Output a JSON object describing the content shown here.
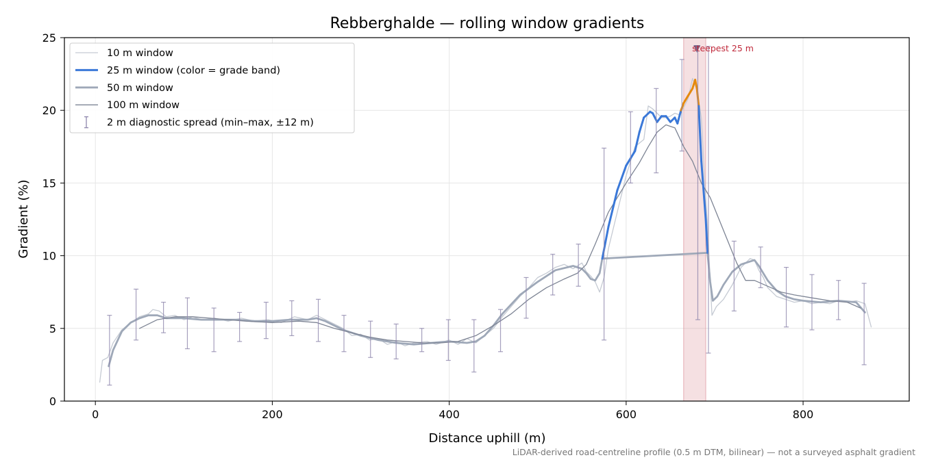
{
  "chart_data": {
    "type": "line",
    "title": "Rebberghalde — rolling window gradients",
    "xlabel": "Distance uphill (m)",
    "ylabel": "Gradient (%)",
    "xlim": [
      -35,
      920
    ],
    "ylim": [
      0,
      25
    ],
    "x_ticks": [
      0,
      200,
      400,
      600,
      800
    ],
    "y_ticks": [
      0,
      5,
      10,
      15,
      20,
      25
    ],
    "grid": true,
    "legend_position": "top-left",
    "footnote": "LiDAR-derived road-centreline profile (0.5 m DTM, bilinear) — not a surveyed asphalt gradient",
    "highlight": {
      "x_range": [
        665,
        690
      ],
      "label": "steepest 25 m",
      "marker": [
        680,
        24.2
      ],
      "color": "#d9828c"
    },
    "series": [
      {
        "name": "10 m window",
        "color": "#c5cad3",
        "points": [
          [
            5,
            1.3
          ],
          [
            8,
            2.8
          ],
          [
            14,
            3.0
          ],
          [
            20,
            4.0
          ],
          [
            30,
            4.9
          ],
          [
            40,
            5.4
          ],
          [
            50,
            5.8
          ],
          [
            60,
            6.0
          ],
          [
            65,
            6.3
          ],
          [
            72,
            6.2
          ],
          [
            80,
            5.8
          ],
          [
            90,
            5.9
          ],
          [
            100,
            5.6
          ],
          [
            110,
            5.8
          ],
          [
            120,
            5.6
          ],
          [
            135,
            5.7
          ],
          [
            150,
            5.5
          ],
          [
            165,
            5.7
          ],
          [
            180,
            5.5
          ],
          [
            195,
            5.6
          ],
          [
            210,
            5.4
          ],
          [
            225,
            5.8
          ],
          [
            240,
            5.6
          ],
          [
            250,
            5.9
          ],
          [
            260,
            5.6
          ],
          [
            270,
            5.3
          ],
          [
            280,
            5.0
          ],
          [
            290,
            4.5
          ],
          [
            300,
            4.6
          ],
          [
            310,
            4.2
          ],
          [
            320,
            4.3
          ],
          [
            330,
            3.9
          ],
          [
            340,
            4.1
          ],
          [
            350,
            3.8
          ],
          [
            360,
            4.0
          ],
          [
            375,
            4.1
          ],
          [
            385,
            3.9
          ],
          [
            400,
            4.2
          ],
          [
            410,
            3.9
          ],
          [
            420,
            4.3
          ],
          [
            430,
            4.0
          ],
          [
            440,
            4.5
          ],
          [
            450,
            5.0
          ],
          [
            460,
            5.8
          ],
          [
            470,
            6.5
          ],
          [
            480,
            7.2
          ],
          [
            490,
            7.8
          ],
          [
            500,
            8.5
          ],
          [
            510,
            8.8
          ],
          [
            520,
            9.2
          ],
          [
            530,
            9.4
          ],
          [
            540,
            9.1
          ],
          [
            550,
            9.5
          ],
          [
            555,
            8.9
          ],
          [
            560,
            8.6
          ],
          [
            565,
            8.2
          ],
          [
            570,
            7.5
          ],
          [
            575,
            8.5
          ],
          [
            580,
            10.5
          ],
          [
            590,
            13.0
          ],
          [
            600,
            15.5
          ],
          [
            610,
            17.5
          ],
          [
            620,
            18.0
          ],
          [
            625,
            20.3
          ],
          [
            630,
            20.1
          ],
          [
            635,
            19.8
          ],
          [
            640,
            19.5
          ],
          [
            645,
            19.5
          ],
          [
            650,
            19.6
          ],
          [
            655,
            19.8
          ],
          [
            660,
            19.7
          ],
          [
            665,
            20.2
          ],
          [
            670,
            20.8
          ],
          [
            675,
            22.2
          ],
          [
            680,
            21.4
          ],
          [
            685,
            19.5
          ],
          [
            688,
            16.0
          ],
          [
            692,
            12.0
          ],
          [
            697,
            5.9
          ],
          [
            702,
            6.5
          ],
          [
            710,
            7.0
          ],
          [
            720,
            8.0
          ],
          [
            730,
            9.2
          ],
          [
            740,
            9.8
          ],
          [
            745,
            9.7
          ],
          [
            750,
            9.0
          ],
          [
            755,
            8.5
          ],
          [
            760,
            7.8
          ],
          [
            765,
            7.5
          ],
          [
            770,
            7.2
          ],
          [
            780,
            7.0
          ],
          [
            790,
            6.8
          ],
          [
            800,
            6.9
          ],
          [
            810,
            6.7
          ],
          [
            820,
            6.8
          ],
          [
            830,
            6.7
          ],
          [
            840,
            6.9
          ],
          [
            850,
            6.8
          ],
          [
            860,
            6.9
          ],
          [
            870,
            6.7
          ],
          [
            877,
            5.1
          ]
        ]
      },
      {
        "name": "25 m window (color = grade band)",
        "color": "#3a78d8",
        "band_colors": {
          "below_20": "#3a78d8",
          "20_to_25": "#e58a0e"
        },
        "points": [
          [
            573,
            9.8
          ],
          [
            580,
            12.0
          ],
          [
            590,
            14.5
          ],
          [
            600,
            16.2
          ],
          [
            610,
            17.2
          ],
          [
            615,
            18.5
          ],
          [
            620,
            19.5
          ],
          [
            627,
            19.9
          ],
          [
            630,
            19.8
          ],
          [
            635,
            19.2
          ],
          [
            640,
            19.6
          ],
          [
            645,
            19.6
          ],
          [
            650,
            19.2
          ],
          [
            655,
            19.5
          ],
          [
            658,
            19.1
          ],
          [
            662,
            20.0
          ],
          [
            665,
            20.5
          ],
          [
            670,
            21.0
          ],
          [
            675,
            21.5
          ],
          [
            678,
            22.1
          ],
          [
            680,
            21.5
          ],
          [
            682,
            20.3
          ],
          [
            685,
            16.5
          ],
          [
            690,
            12.5
          ],
          [
            692,
            10.2
          ]
        ]
      },
      {
        "name": "50 m window",
        "color": "#9ea8b8",
        "points": [
          [
            15,
            2.4
          ],
          [
            20,
            3.5
          ],
          [
            30,
            4.8
          ],
          [
            40,
            5.4
          ],
          [
            50,
            5.7
          ],
          [
            60,
            5.9
          ],
          [
            70,
            5.9
          ],
          [
            80,
            5.7
          ],
          [
            100,
            5.7
          ],
          [
            120,
            5.6
          ],
          [
            140,
            5.6
          ],
          [
            160,
            5.6
          ],
          [
            180,
            5.5
          ],
          [
            200,
            5.5
          ],
          [
            220,
            5.6
          ],
          [
            240,
            5.6
          ],
          [
            250,
            5.7
          ],
          [
            260,
            5.5
          ],
          [
            270,
            5.2
          ],
          [
            280,
            4.9
          ],
          [
            300,
            4.5
          ],
          [
            320,
            4.2
          ],
          [
            340,
            4.0
          ],
          [
            360,
            3.9
          ],
          [
            380,
            4.0
          ],
          [
            400,
            4.1
          ],
          [
            420,
            4.0
          ],
          [
            430,
            4.1
          ],
          [
            440,
            4.5
          ],
          [
            450,
            5.2
          ],
          [
            460,
            6.0
          ],
          [
            480,
            7.3
          ],
          [
            500,
            8.2
          ],
          [
            520,
            9.0
          ],
          [
            540,
            9.3
          ],
          [
            550,
            9.1
          ],
          [
            555,
            8.8
          ],
          [
            560,
            8.4
          ],
          [
            565,
            8.3
          ],
          [
            570,
            8.8
          ],
          [
            573,
            9.8
          ],
          [
            692,
            10.2
          ],
          [
            695,
            8.2
          ],
          [
            698,
            6.9
          ],
          [
            703,
            7.2
          ],
          [
            710,
            8.0
          ],
          [
            720,
            8.9
          ],
          [
            730,
            9.4
          ],
          [
            740,
            9.6
          ],
          [
            745,
            9.7
          ],
          [
            750,
            9.3
          ],
          [
            760,
            8.3
          ],
          [
            770,
            7.6
          ],
          [
            780,
            7.2
          ],
          [
            790,
            7.0
          ],
          [
            800,
            6.9
          ],
          [
            820,
            6.8
          ],
          [
            840,
            6.9
          ],
          [
            860,
            6.8
          ],
          [
            870,
            6.1
          ]
        ]
      },
      {
        "name": "100 m window",
        "color": "#7d8494",
        "points": [
          [
            50,
            5.0
          ],
          [
            70,
            5.6
          ],
          [
            90,
            5.8
          ],
          [
            110,
            5.8
          ],
          [
            130,
            5.7
          ],
          [
            150,
            5.6
          ],
          [
            170,
            5.5
          ],
          [
            200,
            5.4
          ],
          [
            230,
            5.5
          ],
          [
            250,
            5.4
          ],
          [
            270,
            5.0
          ],
          [
            290,
            4.7
          ],
          [
            310,
            4.4
          ],
          [
            330,
            4.2
          ],
          [
            350,
            4.1
          ],
          [
            370,
            4.0
          ],
          [
            390,
            4.0
          ],
          [
            410,
            4.1
          ],
          [
            430,
            4.5
          ],
          [
            450,
            5.2
          ],
          [
            470,
            6.0
          ],
          [
            490,
            7.0
          ],
          [
            510,
            7.8
          ],
          [
            530,
            8.4
          ],
          [
            545,
            8.8
          ],
          [
            555,
            9.4
          ],
          [
            565,
            10.8
          ],
          [
            580,
            13.0
          ],
          [
            600,
            15.0
          ],
          [
            615,
            16.4
          ],
          [
            625,
            17.5
          ],
          [
            635,
            18.5
          ],
          [
            645,
            19.0
          ],
          [
            650,
            18.9
          ],
          [
            655,
            18.8
          ],
          [
            665,
            17.5
          ],
          [
            675,
            16.5
          ],
          [
            685,
            15.0
          ],
          [
            695,
            14.0
          ],
          [
            705,
            12.5
          ],
          [
            715,
            11.0
          ],
          [
            725,
            9.5
          ],
          [
            735,
            8.3
          ],
          [
            745,
            8.3
          ],
          [
            760,
            7.9
          ],
          [
            775,
            7.5
          ],
          [
            790,
            7.3
          ],
          [
            810,
            7.1
          ],
          [
            830,
            6.9
          ],
          [
            850,
            6.8
          ],
          [
            865,
            6.4
          ]
        ]
      }
    ],
    "error_bars": {
      "name": "2 m diagnostic spread (min–max, ±12 m)",
      "color": "#8f87ad",
      "points": [
        [
          16,
          1.1,
          5.9
        ],
        [
          46,
          4.2,
          7.7
        ],
        [
          77,
          4.7,
          6.8
        ],
        [
          104,
          3.6,
          7.1
        ],
        [
          134,
          3.4,
          6.4
        ],
        [
          163,
          4.1,
          6.1
        ],
        [
          193,
          4.3,
          6.8
        ],
        [
          222,
          4.5,
          6.9
        ],
        [
          252,
          4.1,
          7.0
        ],
        [
          281,
          3.4,
          5.9
        ],
        [
          311,
          3.0,
          5.5
        ],
        [
          340,
          2.9,
          5.3
        ],
        [
          369,
          3.4,
          5.0
        ],
        [
          399,
          2.8,
          5.6
        ],
        [
          428,
          2.0,
          5.6
        ],
        [
          458,
          3.4,
          6.3
        ],
        [
          487,
          5.7,
          8.5
        ],
        [
          517,
          7.3,
          10.1
        ],
        [
          546,
          7.9,
          10.8
        ],
        [
          575,
          4.2,
          17.4
        ],
        [
          605,
          15.0,
          19.9
        ],
        [
          634,
          15.7,
          21.5
        ],
        [
          663,
          17.2,
          23.5
        ],
        [
          681,
          5.6,
          24.4
        ],
        [
          693,
          3.3,
          24.4
        ],
        [
          722,
          6.2,
          11.0
        ],
        [
          752,
          7.8,
          10.6
        ],
        [
          781,
          5.1,
          9.2
        ],
        [
          810,
          4.9,
          8.7
        ],
        [
          840,
          5.6,
          8.3
        ],
        [
          869,
          2.5,
          8.1
        ]
      ]
    }
  }
}
